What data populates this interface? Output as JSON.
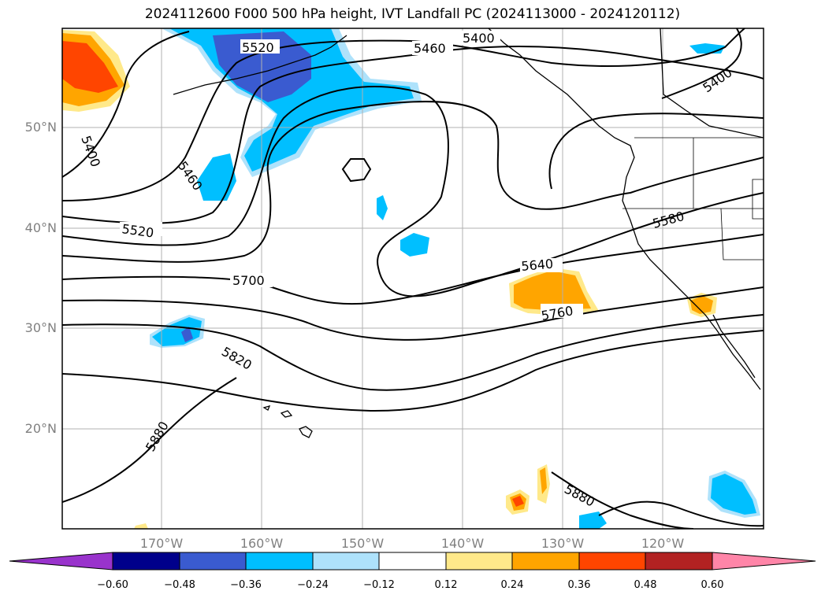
{
  "title": "2024112600 F000 500 hPa height, IVT Landfall PC (2024113000 - 2024120112)",
  "lat_labels": [
    "50°N",
    "40°N",
    "30°N",
    "20°N"
  ],
  "lon_labels": [
    "170°W",
    "160°W",
    "150°W",
    "140°W",
    "130°W",
    "120°W"
  ],
  "contour_labels": [
    "5520",
    "5460",
    "5400",
    "5400",
    "5460",
    "5400",
    "5520",
    "5580",
    "5640",
    "5700",
    "5760",
    "5820",
    "5880",
    "5880"
  ],
  "colorbar": {
    "ticks": [
      "−0.60",
      "−0.48",
      "−0.36",
      "−0.24",
      "−0.12",
      "0.12",
      "0.24",
      "0.36",
      "0.48",
      "0.60"
    ],
    "colors": [
      "#9933cc",
      "#00008b",
      "#3a5bd0",
      "#00bfff",
      "#aee2fb",
      "#ffffff",
      "#ffe98a",
      "#ffa500",
      "#ff4500",
      "#b22222",
      "#ff85a8"
    ]
  },
  "colors": {
    "orange": "#ffa500",
    "yellow": "#ffe98a",
    "red": "#ff4500",
    "blue": "#00bfff",
    "lightblue": "#aee2fb",
    "darkblue": "#3a5bd0"
  }
}
